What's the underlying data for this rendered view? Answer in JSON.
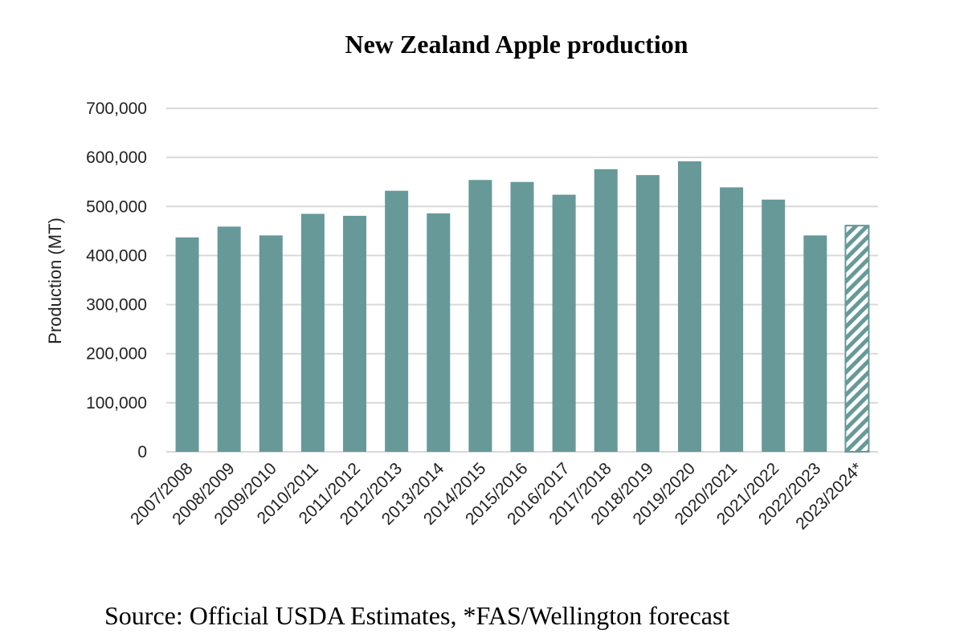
{
  "chart_data": {
    "type": "bar",
    "title": "New Zealand Apple production",
    "xlabel": "",
    "ylabel": "Production (MT)",
    "ylim": [
      0,
      700000
    ],
    "yticks": [
      0,
      100000,
      200000,
      300000,
      400000,
      500000,
      600000,
      700000
    ],
    "ytick_labels": [
      "0",
      "100,000",
      "200,000",
      "300,000",
      "400,000",
      "500,000",
      "600,000",
      "700,000"
    ],
    "grid": true,
    "categories": [
      "2007/2008",
      "2008/2009",
      "2009/2010",
      "2010/2011",
      "2011/2012",
      "2012/2013",
      "2013/2014",
      "2014/2015",
      "2015/2016",
      "2016/2017",
      "2017/2018",
      "2018/2019",
      "2019/2020",
      "2020/2021",
      "2021/2022",
      "2022/2023",
      "2023/2024*"
    ],
    "values": [
      437000,
      459000,
      441000,
      485000,
      481000,
      532000,
      486000,
      554000,
      550000,
      524000,
      576000,
      564000,
      592000,
      539000,
      514000,
      441000,
      461000
    ],
    "forecast": [
      false,
      false,
      false,
      false,
      false,
      false,
      false,
      false,
      false,
      false,
      false,
      false,
      false,
      false,
      false,
      false,
      true
    ],
    "bar_color": "#679999",
    "grid_color": "#d9d9d9",
    "source": "Source: Official USDA Estimates, *FAS/Wellington forecast"
  }
}
